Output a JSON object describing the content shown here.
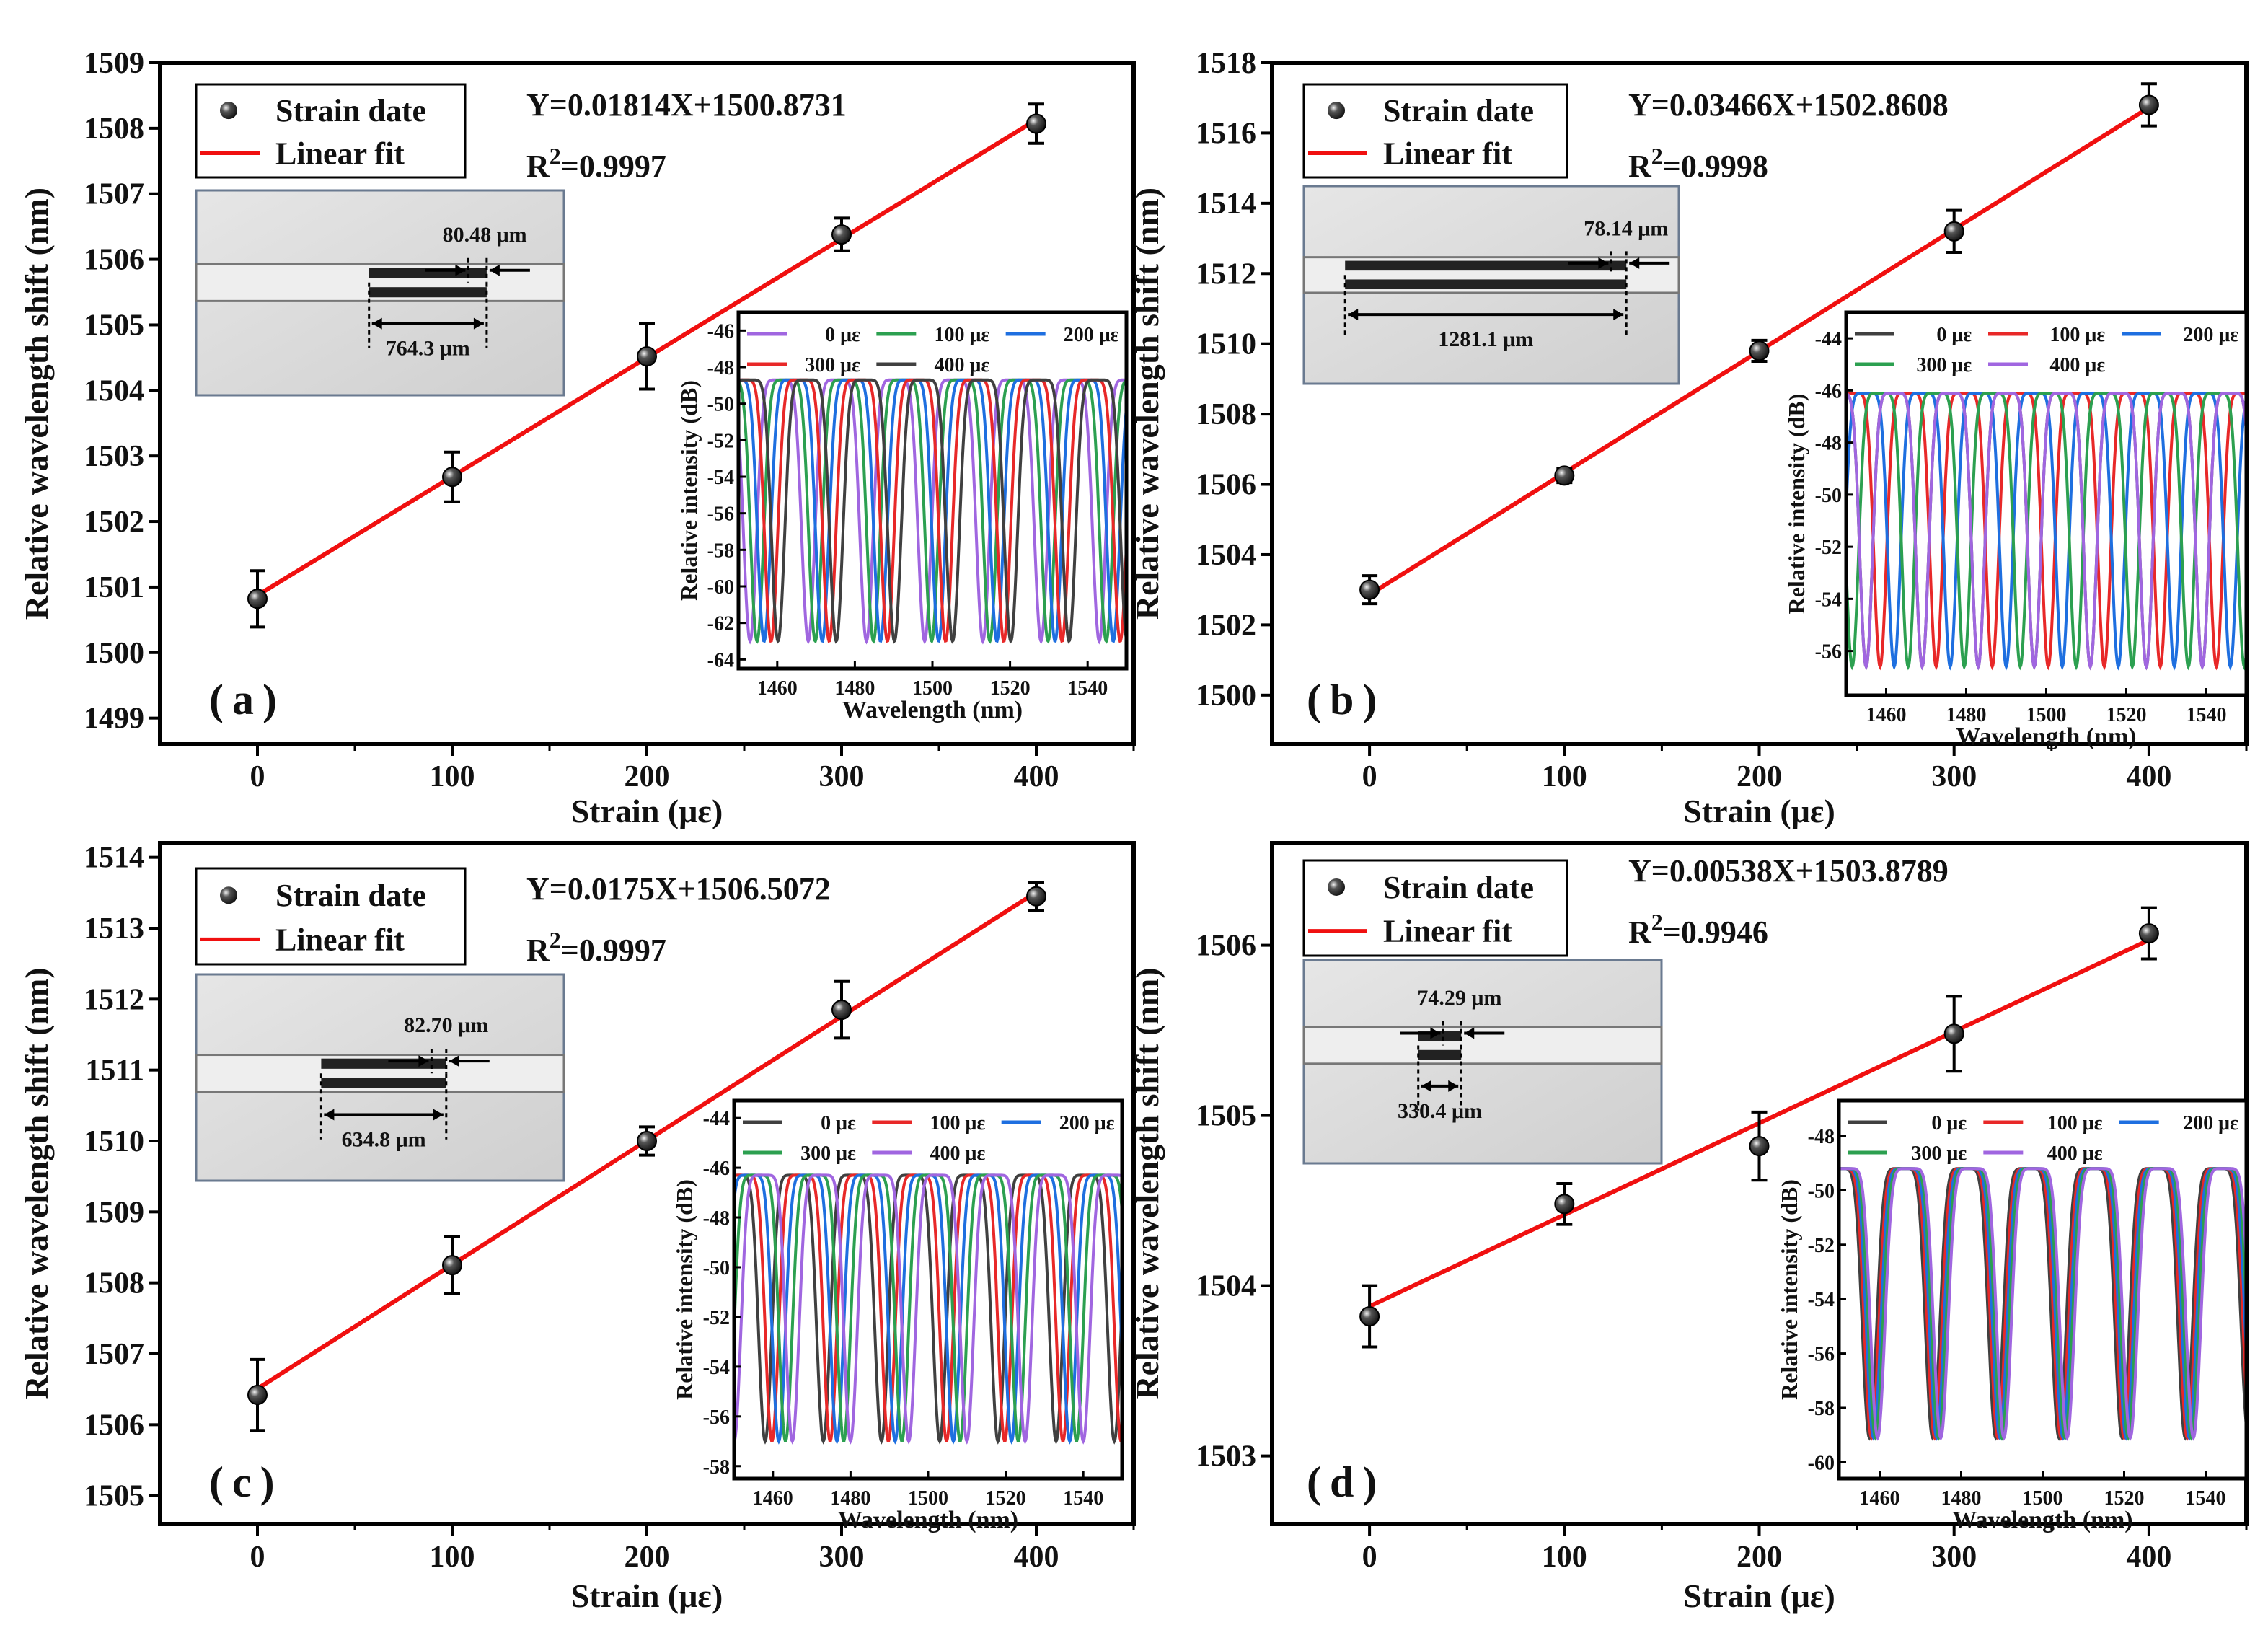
{
  "chart_data": [
    {
      "panel_label": "(a)",
      "type": "scatter",
      "xlabel": "Strain (με)",
      "ylabel": "Relative wavelength shift (nm)",
      "xlim": [
        -50,
        450
      ],
      "ylim": [
        1498.6,
        1509
      ],
      "xticks": [
        0,
        100,
        200,
        300,
        400
      ],
      "yticks": [
        1499,
        1500,
        1501,
        1502,
        1503,
        1504,
        1505,
        1506,
        1507,
        1508,
        1509
      ],
      "points": {
        "x": [
          0,
          100,
          200,
          300,
          400
        ],
        "y": [
          1500.82,
          1502.68,
          1504.52,
          1506.38,
          1508.07
        ],
        "err": [
          0.43,
          0.38,
          0.5,
          0.25,
          0.3
        ]
      },
      "fit": {
        "slope": 0.01814,
        "intercept": 1500.8731
      },
      "legend": [
        "Strain date",
        "Linear fit"
      ],
      "equation": "Y=0.01814X+1500.8731",
      "r2": {
        "prefix": "R",
        "sup": "2",
        "value": "=0.9997"
      },
      "inset_image": {
        "gap_label": "80.48 μm",
        "length_label": "764.3 μm"
      },
      "inset_spectrum": {
        "xlabel": "Wavelength (nm)",
        "ylabel": "Relative intensity (dB)",
        "xlim": [
          1450,
          1550
        ],
        "ylim": [
          -64.5,
          -45
        ],
        "xticks": [
          1460,
          1480,
          1500,
          1520,
          1540
        ],
        "yticks": [
          -64,
          -62,
          -60,
          -58,
          -56,
          -54,
          -52,
          -50,
          -48,
          -46
        ],
        "period_nm": 15,
        "max_db": -48.7,
        "min_db": -63,
        "first_dip_nm": 1453,
        "shift_per_100ue_nm": 1.8,
        "series": [
          {
            "name": "0 με",
            "color": "#a066e0"
          },
          {
            "name": "100 με",
            "color": "#2ca050"
          },
          {
            "name": "200 με",
            "color": "#1e6fe0"
          },
          {
            "name": "300 με",
            "color": "#e82828"
          },
          {
            "name": "400 με",
            "color": "#404040"
          }
        ]
      }
    },
    {
      "panel_label": "(b)",
      "type": "scatter",
      "xlabel": "Strain (με)",
      "ylabel": "Relative wavelength shift (nm)",
      "xlim": [
        -50,
        450
      ],
      "ylim": [
        1498.6,
        1518
      ],
      "xticks": [
        0,
        100,
        200,
        300,
        400
      ],
      "yticks": [
        1500,
        1502,
        1504,
        1506,
        1508,
        1510,
        1512,
        1514,
        1516,
        1518
      ],
      "points": {
        "x": [
          0,
          100,
          200,
          300,
          400
        ],
        "y": [
          1503.0,
          1506.25,
          1509.8,
          1513.2,
          1516.8
        ],
        "err": [
          0.4,
          0.2,
          0.3,
          0.6,
          0.6
        ]
      },
      "fit": {
        "slope": 0.03466,
        "intercept": 1502.8608
      },
      "legend": [
        "Strain date",
        "Linear fit"
      ],
      "equation": "Y=0.03466X+1502.8608",
      "r2": {
        "prefix": "R",
        "sup": "2",
        "value": "=0.9998"
      },
      "inset_image": {
        "gap_label": "78.14 μm",
        "length_label": "1281.1 μm"
      },
      "inset_spectrum": {
        "xlabel": "Wavelength (nm)",
        "ylabel": "Relative intensity (dB)",
        "xlim": [
          1450,
          1550
        ],
        "ylim": [
          -57.7,
          -43
        ],
        "xticks": [
          1460,
          1480,
          1500,
          1520,
          1540
        ],
        "yticks": [
          -56,
          -54,
          -52,
          -50,
          -48,
          -46,
          -44
        ],
        "period_nm": 14,
        "max_db": -46.1,
        "min_db": -56.6,
        "first_dip_nm": 1455,
        "shift_per_100ue_nm": 3.5,
        "series": [
          {
            "name": "0 με",
            "color": "#404040"
          },
          {
            "name": "100 με",
            "color": "#e82828"
          },
          {
            "name": "200 με",
            "color": "#1e6fe0"
          },
          {
            "name": "300 με",
            "color": "#2ca050"
          },
          {
            "name": "400 με",
            "color": "#a066e0"
          }
        ]
      }
    },
    {
      "panel_label": "(c)",
      "type": "scatter",
      "xlabel": "Strain (με)",
      "ylabel": "Relative wavelength shift (nm)",
      "xlim": [
        -50,
        450
      ],
      "ylim": [
        1504.6,
        1514.2
      ],
      "xticks": [
        0,
        100,
        200,
        300,
        400
      ],
      "yticks": [
        1505,
        1506,
        1507,
        1508,
        1509,
        1510,
        1511,
        1512,
        1513,
        1514
      ],
      "points": {
        "x": [
          0,
          100,
          200,
          300,
          400
        ],
        "y": [
          1506.42,
          1508.25,
          1510.0,
          1511.85,
          1513.45
        ],
        "err": [
          0.5,
          0.4,
          0.2,
          0.4,
          0.2
        ]
      },
      "fit": {
        "slope": 0.0175,
        "intercept": 1506.5072
      },
      "legend": [
        "Strain date",
        "Linear fit"
      ],
      "equation": "Y=0.0175X+1506.5072",
      "r2": {
        "prefix": "R",
        "sup": "2",
        "value": "=0.9997"
      },
      "inset_image": {
        "gap_label": "82.70 μm",
        "length_label": "634.8 μm"
      },
      "inset_spectrum": {
        "xlabel": "Wavelength (nm)",
        "ylabel": "Relative intensity (dB)",
        "xlim": [
          1450,
          1550
        ],
        "ylim": [
          -58.5,
          -43.3
        ],
        "xticks": [
          1460,
          1480,
          1500,
          1520,
          1540
        ],
        "yticks": [
          -58,
          -56,
          -54,
          -52,
          -50,
          -48,
          -46,
          -44
        ],
        "period_nm": 15,
        "max_db": -46.3,
        "min_db": -57,
        "first_dip_nm": 1458,
        "shift_per_100ue_nm": 1.75,
        "series": [
          {
            "name": "0 με",
            "color": "#404040"
          },
          {
            "name": "100 με",
            "color": "#e82828"
          },
          {
            "name": "200 με",
            "color": "#1e6fe0"
          },
          {
            "name": "300 με",
            "color": "#2ca050"
          },
          {
            "name": "400 με",
            "color": "#a066e0"
          }
        ]
      }
    },
    {
      "panel_label": "(d)",
      "type": "scatter",
      "xlabel": "Strain (με)",
      "ylabel": "Relative wavelength shift (nm)",
      "xlim": [
        -50,
        450
      ],
      "ylim": [
        1502.6,
        1506.6
      ],
      "xticks": [
        0,
        100,
        200,
        300,
        400
      ],
      "yticks": [
        1503,
        1504,
        1505,
        1506
      ],
      "points": {
        "x": [
          0,
          100,
          200,
          300,
          400
        ],
        "y": [
          1503.82,
          1504.48,
          1504.82,
          1505.48,
          1506.07
        ],
        "err": [
          0.18,
          0.12,
          0.2,
          0.22,
          0.15
        ]
      },
      "fit": {
        "slope": 0.00538,
        "intercept": 1503.8789
      },
      "legend": [
        "Strain date",
        "Linear fit"
      ],
      "equation": "Y=0.00538X+1503.8789",
      "r2": {
        "prefix": "R",
        "sup": "2",
        "value": "=0.9946"
      },
      "inset_image": {
        "gap_label": "74.29 μm",
        "length_label": "330.4 μm"
      },
      "inset_spectrum": {
        "xlabel": "Wavelength (nm)",
        "ylabel": "Relative intensity (dB)",
        "xlim": [
          1450,
          1550
        ],
        "ylim": [
          -60.6,
          -46.7
        ],
        "xticks": [
          1460,
          1480,
          1500,
          1520,
          1540
        ],
        "yticks": [
          -60,
          -58,
          -56,
          -54,
          -52,
          -50,
          -48
        ],
        "period_nm": 15.5,
        "max_db": -49.2,
        "min_db": -59.1,
        "first_dip_nm": 1457.5,
        "shift_per_100ue_nm": 0.5,
        "series": [
          {
            "name": "0 με",
            "color": "#404040"
          },
          {
            "name": "100 με",
            "color": "#e82828"
          },
          {
            "name": "200 με",
            "color": "#1e6fe0"
          },
          {
            "name": "300 με",
            "color": "#2ca050"
          },
          {
            "name": "400 με",
            "color": "#a066e0"
          }
        ]
      }
    }
  ]
}
